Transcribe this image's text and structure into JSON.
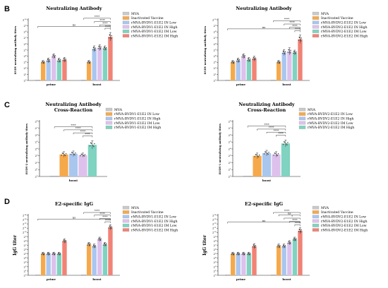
{
  "panels": [
    {
      "letter": "B"
    },
    {
      "letter": "C"
    },
    {
      "letter": "D"
    }
  ],
  "chart_data": [
    {
      "id": "B1",
      "type": "bar",
      "title": "Neutralizing Antibody",
      "ylabel": "BVDV neutralizing antibody titers",
      "yscale": "log2",
      "ylim": [
        0,
        10
      ],
      "yticks": [
        "2⁰",
        "2¹",
        "2²",
        "2³",
        "2⁴",
        "2⁵",
        "2⁶",
        "2⁷",
        "2⁸",
        "2⁹",
        "2¹⁰"
      ],
      "categories": [
        "prime",
        "boost"
      ],
      "legend_position": "top-right",
      "series": [
        {
          "name": "MVA",
          "color": "#c9c9c9",
          "values": [
            0,
            0
          ],
          "err": [
            0,
            0
          ]
        },
        {
          "name": "Inactivated Vaccine",
          "color": "#f6a94b",
          "values": [
            3.0,
            3.0
          ],
          "err": [
            0.3,
            0.3
          ]
        },
        {
          "name": "rMVA-BVDV1-E1E2 IN Low",
          "color": "#a9c6ee",
          "values": [
            3.3,
            5.2
          ],
          "err": [
            0.4,
            0.5
          ]
        },
        {
          "name": "rMVA-BVDV1-E1E2 IN High",
          "color": "#ddc1ec",
          "values": [
            4.0,
            5.4
          ],
          "err": [
            0.4,
            0.5
          ]
        },
        {
          "name": "rMVA-BVDV1-E1E2 IM Low",
          "color": "#7fd3c0",
          "values": [
            3.3,
            5.3
          ],
          "err": [
            0.4,
            0.4
          ]
        },
        {
          "name": "rMVA-BVDV1-E1E2 IM High",
          "color": "#f08376",
          "values": [
            3.4,
            7.2
          ],
          "err": [
            0.4,
            0.7
          ]
        }
      ],
      "brackets": [
        {
          "label": "ns",
          "from": [
            0,
            0
          ],
          "to": [
            1,
            5
          ],
          "level": 1
        },
        {
          "label": "****",
          "from": [
            1,
            0
          ],
          "to": [
            1,
            5
          ],
          "level": 3
        },
        {
          "label": "****",
          "from": [
            1,
            2
          ],
          "to": [
            1,
            5
          ],
          "level": 2
        },
        {
          "label": "****",
          "from": [
            1,
            3
          ],
          "to": [
            1,
            5
          ],
          "level": 1
        },
        {
          "label": "****",
          "from": [
            1,
            4
          ],
          "to": [
            1,
            5
          ],
          "level": 0
        }
      ]
    },
    {
      "id": "B2",
      "type": "bar",
      "title": "Neutralizing Antibody",
      "ylabel": "BVDV neutralizing antibody titers",
      "yscale": "log2",
      "ylim": [
        0,
        10
      ],
      "yticks": [
        "2⁰",
        "2¹",
        "2²",
        "2³",
        "2⁴",
        "2⁵",
        "2⁶",
        "2⁷",
        "2⁸",
        "2⁹",
        "2¹⁰"
      ],
      "categories": [
        "prime",
        "boost"
      ],
      "legend_position": "top-right",
      "series": [
        {
          "name": "MVA",
          "color": "#c9c9c9",
          "values": [
            0,
            0
          ],
          "err": [
            0,
            0
          ]
        },
        {
          "name": "Inactivated Vaccine",
          "color": "#f6a94b",
          "values": [
            3.0,
            3.0
          ],
          "err": [
            0.3,
            0.3
          ]
        },
        {
          "name": "rMVA-BVDV2-E1E2 IN Low",
          "color": "#a9c6ee",
          "values": [
            3.3,
            4.6
          ],
          "err": [
            0.4,
            0.5
          ]
        },
        {
          "name": "rMVA-BVDV2-E1E2 IN High",
          "color": "#ddc1ec",
          "values": [
            4.0,
            4.8
          ],
          "err": [
            0.4,
            0.6
          ]
        },
        {
          "name": "rMVA-BVDV2-E1E2 IM Low",
          "color": "#7fd3c0",
          "values": [
            3.4,
            4.6
          ],
          "err": [
            0.4,
            0.4
          ]
        },
        {
          "name": "rMVA-BVDV2-E1E2 IM High",
          "color": "#f08376",
          "values": [
            3.6,
            6.8
          ],
          "err": [
            0.4,
            0.7
          ]
        }
      ],
      "brackets": [
        {
          "label": "ns",
          "from": [
            0,
            0
          ],
          "to": [
            1,
            5
          ],
          "level": 1
        },
        {
          "label": "****",
          "from": [
            1,
            0
          ],
          "to": [
            1,
            5
          ],
          "level": 3
        },
        {
          "label": "****",
          "from": [
            1,
            2
          ],
          "to": [
            1,
            5
          ],
          "level": 2
        },
        {
          "label": "****",
          "from": [
            1,
            3
          ],
          "to": [
            1,
            5
          ],
          "level": 1
        },
        {
          "label": "****",
          "from": [
            1,
            4
          ],
          "to": [
            1,
            5
          ],
          "level": 0
        }
      ]
    },
    {
      "id": "C1",
      "type": "bar",
      "title": "Neutralizing Antibody\nCross-Reaction",
      "ylabel": "BVDV-2 neutralizing antibody titers",
      "yscale": "log2",
      "ylim": [
        0,
        8
      ],
      "yticks": [
        "2⁰",
        "2¹",
        "2²",
        "2³",
        "2⁴",
        "2⁵",
        "2⁶",
        "2⁷",
        "2⁸"
      ],
      "categories": [
        "boost"
      ],
      "legend_position": "top-right",
      "series": [
        {
          "name": "MVA",
          "color": "#c9c9c9",
          "values": [
            0
          ],
          "err": [
            0
          ]
        },
        {
          "name": "rMVA-BVDV1-E1E2 IN Low",
          "color": "#f6a94b",
          "values": [
            3.2
          ],
          "err": [
            0.4
          ]
        },
        {
          "name": "rMVA-BVDV1-E1E2 IN High",
          "color": "#a9c6ee",
          "values": [
            3.3
          ],
          "err": [
            0.4
          ]
        },
        {
          "name": "rMVA-BVDV1-E1E2 IM Low",
          "color": "#ddc1ec",
          "values": [
            3.1
          ],
          "err": [
            0.3
          ]
        },
        {
          "name": "rMVA-BVDV1-E1E2 IM High",
          "color": "#7fd3c0",
          "values": [
            4.6
          ],
          "err": [
            0.6
          ]
        }
      ],
      "brackets": [
        {
          "label": "****",
          "from": [
            0,
            0
          ],
          "to": [
            0,
            4
          ],
          "level": 3
        },
        {
          "label": "****",
          "from": [
            0,
            1
          ],
          "to": [
            0,
            4
          ],
          "level": 2
        },
        {
          "label": "****",
          "from": [
            0,
            2
          ],
          "to": [
            0,
            4
          ],
          "level": 1
        },
        {
          "label": "****",
          "from": [
            0,
            3
          ],
          "to": [
            0,
            4
          ],
          "level": 0
        }
      ]
    },
    {
      "id": "C2",
      "type": "bar",
      "title": "Neutralizing Antibody\nCross-Reaction",
      "ylabel": "BVDV-1 neutralizing antibody titers",
      "yscale": "log2",
      "ylim": [
        0,
        8
      ],
      "yticks": [
        "2⁰",
        "2¹",
        "2²",
        "2³",
        "2⁴",
        "2⁵",
        "2⁶",
        "2⁷",
        "2⁸"
      ],
      "categories": [
        "boost"
      ],
      "legend_position": "top-right",
      "series": [
        {
          "name": "MVA",
          "color": "#c9c9c9",
          "values": [
            0
          ],
          "err": [
            0
          ]
        },
        {
          "name": "rMVA-BVDV2-E1E2 IN Low",
          "color": "#f6a94b",
          "values": [
            3.0
          ],
          "err": [
            0.4
          ]
        },
        {
          "name": "rMVA-BVDV2-E1E2 IN High",
          "color": "#a9c6ee",
          "values": [
            3.4
          ],
          "err": [
            0.4
          ]
        },
        {
          "name": "rMVA-BVDV2-E1E2 IM Low",
          "color": "#ddc1ec",
          "values": [
            3.2
          ],
          "err": [
            0.4
          ]
        },
        {
          "name": "rMVA-BVDV2-E1E2 IM High",
          "color": "#7fd3c0",
          "values": [
            4.8
          ],
          "err": [
            0.5
          ]
        }
      ],
      "brackets": [
        {
          "label": "****",
          "from": [
            0,
            0
          ],
          "to": [
            0,
            4
          ],
          "level": 3
        },
        {
          "label": "****",
          "from": [
            0,
            1
          ],
          "to": [
            0,
            4
          ],
          "level": 2
        },
        {
          "label": "****",
          "from": [
            0,
            2
          ],
          "to": [
            0,
            4
          ],
          "level": 1
        },
        {
          "label": "****",
          "from": [
            0,
            3
          ],
          "to": [
            0,
            4
          ],
          "level": 0
        }
      ]
    },
    {
      "id": "D1",
      "type": "bar",
      "title": "E2-specific IgG",
      "ylabel": "IgG titer",
      "yscale": "log2",
      "ylim": [
        0,
        14
      ],
      "yticks": [
        "2⁰",
        "2¹",
        "2²",
        "2³",
        "2⁴",
        "2⁵",
        "2⁶",
        "2⁷",
        "2⁸",
        "2⁹",
        "2¹⁰",
        "2¹¹",
        "2¹²",
        "2¹³",
        "2¹⁴"
      ],
      "categories": [
        "prime",
        "boost"
      ],
      "legend_position": "top-right",
      "series": [
        {
          "name": "MVA",
          "color": "#c9c9c9",
          "values": [
            0,
            0
          ],
          "err": [
            0,
            0
          ]
        },
        {
          "name": "Inactivated Vaccine",
          "color": "#f6a94b",
          "values": [
            5.0,
            7.2
          ],
          "err": [
            0.4,
            0.5
          ]
        },
        {
          "name": "rMVA-BVDV1-E1E2 IN Low",
          "color": "#a9c6ee",
          "values": [
            5.0,
            6.8
          ],
          "err": [
            0.4,
            0.5
          ]
        },
        {
          "name": "rMVA-BVDV1-E1E2 IN High",
          "color": "#ddc1ec",
          "values": [
            5.0,
            8.4
          ],
          "err": [
            0.4,
            0.5
          ]
        },
        {
          "name": "rMVA-BVDV1-E1E2 IM Low",
          "color": "#7fd3c0",
          "values": [
            5.0,
            7.2
          ],
          "err": [
            0.4,
            0.5
          ]
        },
        {
          "name": "rMVA-BVDV1-E1E2 IM High",
          "color": "#f08376",
          "values": [
            8.0,
            11.2
          ],
          "err": [
            0.5,
            0.6
          ]
        }
      ],
      "brackets": [
        {
          "label": "ns",
          "from": [
            0,
            0
          ],
          "to": [
            1,
            5
          ],
          "level": 1
        },
        {
          "label": "****",
          "from": [
            1,
            0
          ],
          "to": [
            1,
            5
          ],
          "level": 3
        },
        {
          "label": "****",
          "from": [
            1,
            2
          ],
          "to": [
            1,
            5
          ],
          "level": 2
        },
        {
          "label": "****",
          "from": [
            1,
            3
          ],
          "to": [
            1,
            5
          ],
          "level": 1
        },
        {
          "label": "****",
          "from": [
            1,
            4
          ],
          "to": [
            1,
            5
          ],
          "level": 0
        }
      ]
    },
    {
      "id": "D2",
      "type": "bar",
      "title": "E2-specific IgG",
      "ylabel": "IgG titer",
      "yscale": "log2",
      "ylim": [
        0,
        14
      ],
      "yticks": [
        "2⁰",
        "2¹",
        "2²",
        "2³",
        "2⁴",
        "2⁵",
        "2⁶",
        "2⁷",
        "2⁸",
        "2⁹",
        "2¹⁰",
        "2¹¹",
        "2¹²",
        "2¹³",
        "2¹⁴"
      ],
      "categories": [
        "prime",
        "boost"
      ],
      "legend_position": "top-right",
      "series": [
        {
          "name": "MVA",
          "color": "#c9c9c9",
          "values": [
            0,
            0
          ],
          "err": [
            0,
            0
          ]
        },
        {
          "name": "Inactivated Vaccine",
          "color": "#f6a94b",
          "values": [
            5.0,
            6.8
          ],
          "err": [
            0.4,
            0.5
          ]
        },
        {
          "name": "rMVA-BVDV2-E1E2 IN Low",
          "color": "#a9c6ee",
          "values": [
            5.0,
            6.8
          ],
          "err": [
            0.4,
            0.5
          ]
        },
        {
          "name": "rMVA-BVDV2-E1E2 IN High",
          "color": "#ddc1ec",
          "values": [
            5.0,
            7.6
          ],
          "err": [
            0.4,
            0.5
          ]
        },
        {
          "name": "rMVA-BVDV2-E1E2 IM Low",
          "color": "#7fd3c0",
          "values": [
            5.0,
            8.4
          ],
          "err": [
            0.4,
            0.5
          ]
        },
        {
          "name": "rMVA-BVDV2-E1E2 IM High",
          "color": "#f08376",
          "values": [
            6.8,
            10.4
          ],
          "err": [
            0.6,
            0.7
          ]
        }
      ],
      "brackets": [
        {
          "label": "ns",
          "from": [
            0,
            0
          ],
          "to": [
            1,
            5
          ],
          "level": 1
        },
        {
          "label": "****",
          "from": [
            1,
            0
          ],
          "to": [
            1,
            5
          ],
          "level": 4
        },
        {
          "label": "ns",
          "from": [
            1,
            1
          ],
          "to": [
            1,
            5
          ],
          "level": 3
        },
        {
          "label": "*",
          "from": [
            1,
            2
          ],
          "to": [
            1,
            5
          ],
          "level": 2
        },
        {
          "label": "****",
          "from": [
            1,
            3
          ],
          "to": [
            1,
            5
          ],
          "level": 1
        },
        {
          "label": "****",
          "from": [
            1,
            4
          ],
          "to": [
            1,
            5
          ],
          "level": 0
        }
      ]
    }
  ]
}
